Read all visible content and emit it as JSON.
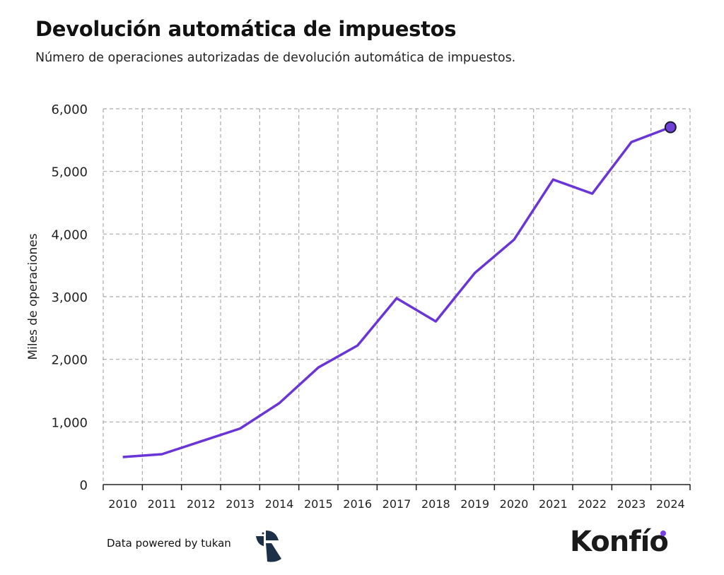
{
  "title": "Devolución automática de impuestos",
  "subtitle": "Número de operaciones autorizadas de devolución automática de impuestos.",
  "footer": {
    "text": "Data powered by tukan",
    "logo_tukan": "tukan",
    "logo_konfio": "Konfío"
  },
  "colors": {
    "line": "#6a35d6",
    "marker_fill": "#7040d8",
    "grid": "#aaaaaa",
    "axis": "#222222",
    "tukan": "#1c3048",
    "konfio_dot": "#7b3fe4"
  },
  "chart_data": {
    "type": "line",
    "title": "",
    "xlabel": "",
    "ylabel": "Miles de operaciones",
    "categories": [
      "2010",
      "2011",
      "2012",
      "2013",
      "2014",
      "2015",
      "2016",
      "2017",
      "2018",
      "2019",
      "2020",
      "2021",
      "2022",
      "2023",
      "2024"
    ],
    "values": [
      440,
      485,
      690,
      895,
      1300,
      1870,
      2220,
      2975,
      2605,
      3380,
      3910,
      4870,
      4645,
      5468,
      5705
    ],
    "ylim": [
      0,
      6000
    ],
    "yticks": [
      0,
      1000,
      2000,
      3000,
      4000,
      5000,
      6000
    ],
    "ytick_labels": [
      "0",
      "1,000",
      "2,000",
      "3,000",
      "4,000",
      "5,000",
      "6,000"
    ],
    "grid": true,
    "grid_style": "dashed",
    "last_point_marker": true
  }
}
